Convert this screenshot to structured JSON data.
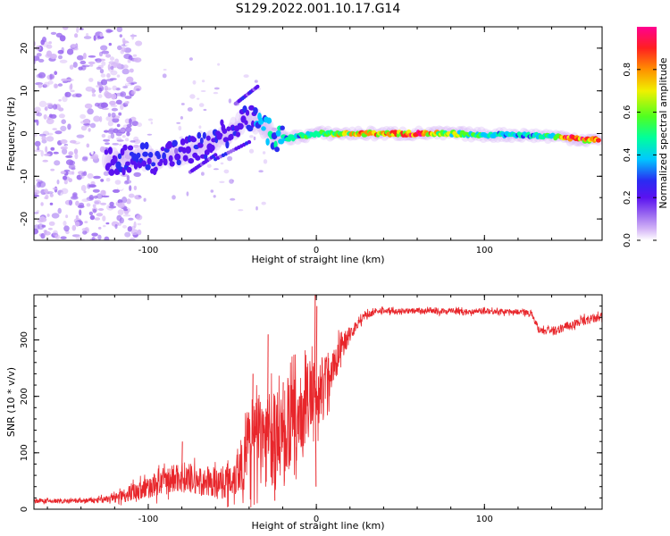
{
  "title": "S129.2022.001.10.17.G14",
  "colors": {
    "snr_line": "#e8262b",
    "frame": "#000000",
    "noise": "#7a3cf0"
  },
  "chart_data": [
    {
      "type": "heatmap",
      "xlabel": "Height of straight line (km)",
      "ylabel": "Frequency (Hz)",
      "xlim": [
        -168,
        170
      ],
      "ylim": [
        -25,
        25
      ],
      "x_ticks": [
        -100,
        0,
        100
      ],
      "y_ticks": [
        -20,
        -10,
        0,
        10,
        20
      ],
      "colorbar": {
        "label": "Normalized spectral amplitude",
        "range": [
          0,
          1
        ],
        "ticks": [
          0.0,
          0.2,
          0.4,
          0.6,
          0.8
        ],
        "colors": [
          "#ffffff",
          "#d6b8f7",
          "#9b6af0",
          "#5a12f0",
          "#2a2cf2",
          "#00c8ff",
          "#00ff9c",
          "#50ff20",
          "#f0f000",
          "#ff9000",
          "#ff2020",
          "#ff0090"
        ]
      },
      "ridge": [
        {
          "x": -125,
          "f": -7.0,
          "a": 0.3
        },
        {
          "x": -110,
          "f": -5.5,
          "a": 0.35
        },
        {
          "x": -95,
          "f": -6.0,
          "a": 0.35
        },
        {
          "x": -80,
          "f": -5.0,
          "a": 0.3
        },
        {
          "x": -65,
          "f": -2.5,
          "a": 0.35
        },
        {
          "x": -50,
          "f": 1.0,
          "a": 0.35
        },
        {
          "x": -40,
          "f": 3.5,
          "a": 0.35
        },
        {
          "x": -32,
          "f": 2.0,
          "a": 0.45
        },
        {
          "x": -25,
          "f": -1.0,
          "a": 0.5
        },
        {
          "x": -15,
          "f": -1.0,
          "a": 0.55
        },
        {
          "x": 0,
          "f": 0.0,
          "a": 0.6
        },
        {
          "x": 20,
          "f": 0.0,
          "a": 0.8
        },
        {
          "x": 40,
          "f": 0.0,
          "a": 0.85
        },
        {
          "x": 60,
          "f": 0.0,
          "a": 0.9
        },
        {
          "x": 80,
          "f": 0.0,
          "a": 0.7
        },
        {
          "x": 100,
          "f": -0.3,
          "a": 0.55
        },
        {
          "x": 120,
          "f": -0.3,
          "a": 0.5
        },
        {
          "x": 140,
          "f": -0.6,
          "a": 0.6
        },
        {
          "x": 150,
          "f": -1.0,
          "a": 0.95
        },
        {
          "x": 160,
          "f": -1.5,
          "a": 0.9
        },
        {
          "x": 168,
          "f": -1.5,
          "a": 0.9
        }
      ],
      "noise_region_x": [
        -168,
        -115
      ]
    },
    {
      "type": "line",
      "xlabel": "Height of straight line (km)",
      "ylabel": "SNR (10 * v/v)",
      "xlim": [
        -168,
        170
      ],
      "ylim": [
        0,
        380
      ],
      "x_ticks": [
        -100,
        0,
        100
      ],
      "y_ticks": [
        0,
        100,
        200,
        300
      ],
      "series": [
        {
          "x": [
            -168,
            -150,
            -130,
            -120,
            -110,
            -100,
            -90,
            -80,
            -70,
            -60,
            -50,
            -45,
            -40,
            -35,
            -30,
            -25,
            -20,
            -15,
            -10,
            -5,
            0,
            5,
            10,
            15,
            20,
            25,
            30,
            40,
            50,
            60,
            70,
            80,
            90,
            100,
            110,
            120,
            128,
            132,
            140,
            150,
            160,
            170
          ],
          "y": [
            15,
            14,
            16,
            20,
            30,
            38,
            50,
            58,
            48,
            45,
            55,
            75,
            110,
            125,
            130,
            120,
            140,
            150,
            160,
            190,
            200,
            230,
            250,
            290,
            310,
            330,
            345,
            352,
            350,
            352,
            350,
            352,
            350,
            352,
            350,
            350,
            348,
            320,
            315,
            325,
            335,
            340
          ],
          "jitter": [
            4,
            4,
            5,
            8,
            15,
            20,
            25,
            28,
            25,
            25,
            35,
            50,
            70,
            85,
            90,
            85,
            80,
            80,
            70,
            70,
            60,
            50,
            40,
            25,
            15,
            8,
            6,
            5,
            5,
            5,
            5,
            5,
            5,
            5,
            5,
            5,
            5,
            8,
            8,
            8,
            8,
            8
          ],
          "peaks": [
            [
              -1,
              380
            ],
            [
              0,
              360
            ],
            [
              -29,
              310
            ],
            [
              -38,
              240
            ],
            [
              -20,
              225
            ],
            [
              -80,
              120
            ],
            [
              -0.5,
              40
            ],
            [
              -25,
              15
            ]
          ]
        }
      ]
    }
  ]
}
